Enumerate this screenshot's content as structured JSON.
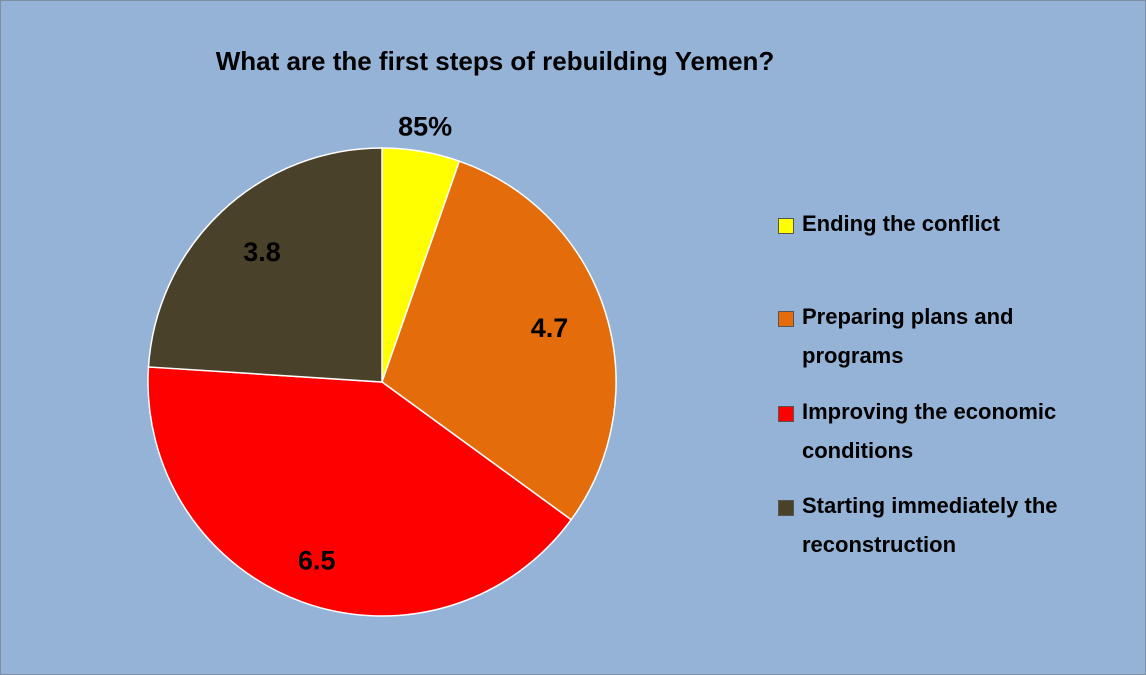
{
  "chart_data": {
    "type": "pie",
    "title": "What are the first steps of rebuilding Yemen?",
    "categories": [
      "Ending the conflict",
      "Preparing plans and programs",
      "Improving the economic conditions",
      "Starting immediately the reconstruction"
    ],
    "values": [
      0.85,
      4.7,
      6.5,
      3.8
    ],
    "value_labels": [
      "85%",
      "4.7",
      "6.5",
      "3.8"
    ],
    "colors": [
      "#ffff00",
      "#e46c0a",
      "#ff0000",
      "#4a412a"
    ],
    "legend": "right"
  }
}
